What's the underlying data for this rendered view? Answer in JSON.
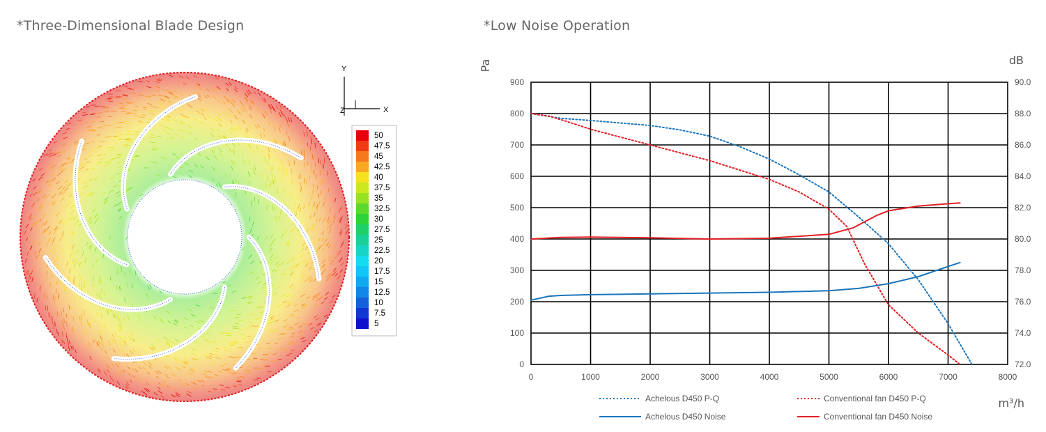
{
  "left_panel": {
    "heading": "*Three-Dimensional Blade Design",
    "coord_axes": {
      "y": "Y",
      "x": "X",
      "z": "Z"
    },
    "colorbar": {
      "labels": [
        "50",
        "47.5",
        "45",
        "42.5",
        "40",
        "37.5",
        "35",
        "32.5",
        "30",
        "27.5",
        "25",
        "22.5",
        "20",
        "17.5",
        "15",
        "12.5",
        "10",
        "7.5",
        "5"
      ],
      "colors": [
        "#e8000c",
        "#f03a14",
        "#f47a1c",
        "#f9a824",
        "#f6e21e",
        "#cbe81e",
        "#98e224",
        "#5ad82c",
        "#2ed23a",
        "#1ecf6a",
        "#1acf98",
        "#18d4c4",
        "#14dcee",
        "#10c6f4",
        "#10a8ee",
        "#1286e4",
        "#1460da",
        "#1236d2",
        "#0e12cc"
      ]
    }
  },
  "right_panel": {
    "heading": "*Low Noise Operation",
    "chart_data": {
      "type": "line",
      "ylabel_left": "Pa",
      "ylabel_right": "dB",
      "xlabel": "m³/h",
      "x_ticks": [
        "0",
        "1000",
        "2000",
        "3000",
        "4000",
        "5000",
        "6000",
        "7000",
        "8000"
      ],
      "y_left_ticks": [
        "0",
        "100",
        "200",
        "300",
        "400",
        "500",
        "600",
        "700",
        "800",
        "900"
      ],
      "y_right_ticks": [
        "72.0",
        "74.0",
        "76.0",
        "78.0",
        "80.0",
        "82.0",
        "84.0",
        "86.0",
        "88.0",
        "90.0"
      ],
      "xlim": [
        0,
        8000
      ],
      "ylim_left": [
        0,
        900
      ],
      "ylim_right": [
        72,
        90
      ],
      "grid": true,
      "series": [
        {
          "name": "Achelous D450  P-Q",
          "axis": "left",
          "style": "dotted",
          "color": "#1a75bc",
          "x": [
            0,
            500,
            1000,
            1500,
            2000,
            2500,
            3000,
            3500,
            4000,
            4500,
            5000,
            5500,
            6000,
            6500,
            7000,
            7400
          ],
          "y": [
            800,
            785,
            778,
            770,
            762,
            748,
            728,
            695,
            655,
            605,
            550,
            470,
            385,
            270,
            130,
            0
          ]
        },
        {
          "name": "Conventional fan D450 P-Q",
          "axis": "left",
          "style": "dotted",
          "color": "#e31e24",
          "x": [
            0,
            300,
            600,
            1000,
            1500,
            2000,
            2500,
            3000,
            3500,
            4000,
            4500,
            5000,
            5300,
            5600,
            6000,
            6500,
            7000,
            7200
          ],
          "y": [
            800,
            792,
            775,
            750,
            725,
            700,
            675,
            650,
            620,
            590,
            550,
            495,
            440,
            320,
            190,
            100,
            30,
            0
          ]
        },
        {
          "name": "Achelous D450 Noise",
          "axis": "right",
          "style": "solid",
          "color": "#1a75bc",
          "x": [
            0,
            300,
            500,
            1000,
            2000,
            3000,
            4000,
            5000,
            5500,
            6000,
            6500,
            7000,
            7200
          ],
          "y": [
            76.1,
            76.35,
            76.4,
            76.45,
            76.5,
            76.55,
            76.6,
            76.7,
            76.85,
            77.15,
            77.6,
            78.25,
            78.5
          ]
        },
        {
          "name": "Conventional fan D450 Noise",
          "axis": "right",
          "style": "solid",
          "color": "#e31e24",
          "x": [
            0,
            500,
            1000,
            2000,
            3000,
            4000,
            5000,
            5400,
            5800,
            6000,
            6500,
            7000,
            7200
          ],
          "y": [
            80.0,
            80.1,
            80.12,
            80.08,
            80.0,
            80.05,
            80.3,
            80.7,
            81.5,
            81.8,
            82.1,
            82.25,
            82.3
          ]
        }
      ],
      "legend_placement": "bottom"
    }
  }
}
